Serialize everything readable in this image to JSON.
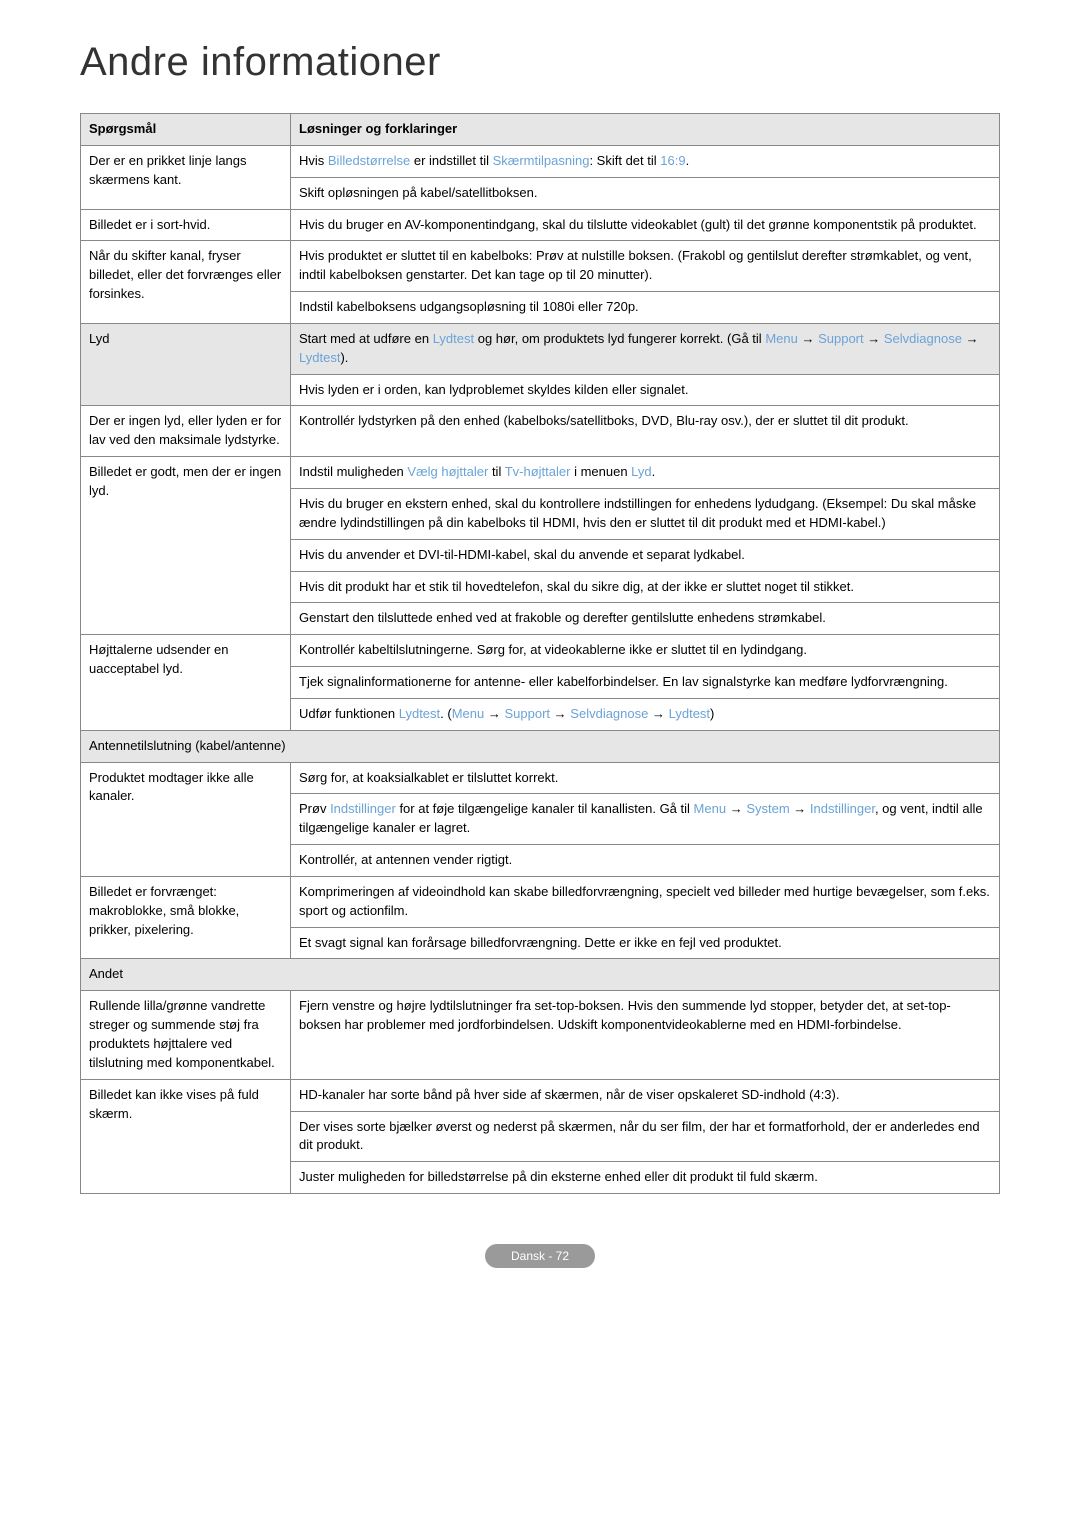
{
  "title": "Andre informationer",
  "headers": {
    "q": "Spørgsmål",
    "a": "Løsninger og forklaringer"
  },
  "rows": [
    {
      "type": "row",
      "q": "Der er en prikket linje langs skærmens kant.",
      "cells": [
        {
          "html": "Hvis <span class='highlight'>Billedstørrelse</span> er indstillet til <span class='highlight'>Skærmtilpasning</span>: Skift det til <span class='highlight'>16:9</span>."
        },
        {
          "html": "Skift opløsningen på kabel/satellitboksen."
        }
      ]
    },
    {
      "type": "row",
      "q": "Billedet er i sort-hvid.",
      "cells": [
        {
          "html": "Hvis du bruger en AV-komponentindgang, skal du tilslutte videokablet (gult) til det grønne komponentstik på produktet."
        }
      ]
    },
    {
      "type": "row",
      "q": "Når du skifter kanal, fryser billedet, eller det forvrænges eller forsinkes.",
      "cells": [
        {
          "html": "Hvis produktet er sluttet til en kabelboks: Prøv at nulstille boksen. (Frakobl og gentilslut derefter strømkablet, og vent, indtil kabelboksen genstarter. Det kan tage op til 20 minutter)."
        },
        {
          "html": "Indstil kabelboksens udgangsopløsning til 1080i eller 720p."
        }
      ]
    },
    {
      "type": "row",
      "q": "Lyd",
      "qbg": true,
      "cells": [
        {
          "bg": true,
          "html": "Start med at udføre en <span class='highlight'>Lydtest</span> og hør, om produktets lyd fungerer korrekt. (Gå til <span class='highlight'>Menu</span> <span class='arrow'>→</span> <span class='highlight'>Support</span> <span class='arrow'>→</span> <span class='highlight'>Selvdiagnose</span> <span class='arrow'>→</span> <span class='highlight'>Lydtest</span>)."
        },
        {
          "html": "Hvis lyden er i orden, kan lydproblemet skyldes kilden eller signalet."
        }
      ]
    },
    {
      "type": "row",
      "q": "Der er ingen lyd, eller lyden er for lav ved den maksimale lydstyrke.",
      "cells": [
        {
          "html": "Kontrollér lydstyrken på den enhed (kabelboks/satellitboks, DVD, Blu-ray osv.), der er sluttet til dit produkt."
        }
      ]
    },
    {
      "type": "row",
      "q": "Billedet er godt, men der er ingen lyd.",
      "cells": [
        {
          "html": "Indstil muligheden <span class='highlight'>Vælg højttaler</span> til <span class='highlight'>Tv-højttaler</span> i menuen <span class='highlight'>Lyd</span>."
        },
        {
          "html": "Hvis du bruger en ekstern enhed, skal du kontrollere indstillingen for enhedens lydudgang. (Eksempel: Du skal måske ændre lydindstillingen på din kabelboks til HDMI, hvis den er sluttet til dit produkt med et HDMI-kabel.)"
        },
        {
          "html": "Hvis du anvender et DVI-til-HDMI-kabel, skal du anvende et separat lydkabel."
        },
        {
          "html": "Hvis dit produkt har et stik til hovedtelefon, skal du sikre dig, at der ikke er sluttet noget til stikket."
        },
        {
          "html": "Genstart den tilsluttede enhed ved at frakoble og derefter gentilslutte enhedens strømkabel."
        }
      ]
    },
    {
      "type": "row",
      "q": "Højttalerne udsender en uacceptabel lyd.",
      "cells": [
        {
          "html": "Kontrollér kabeltilslutningerne. Sørg for, at videokablerne ikke er sluttet til en lydindgang."
        },
        {
          "html": "Tjek signalinformationerne for antenne- eller kabelforbindelser. En lav signalstyrke kan medføre lydforvrængning."
        },
        {
          "html": "Udfør funktionen <span class='highlight'>Lydtest</span>. (<span class='highlight'>Menu</span> <span class='arrow'>→</span> <span class='highlight'>Support</span> <span class='arrow'>→</span> <span class='highlight'>Selvdiagnose</span> <span class='arrow'>→</span> <span class='highlight'>Lydtest</span>)"
        }
      ]
    },
    {
      "type": "section",
      "text": "Antennetilslutning (kabel/antenne)"
    },
    {
      "type": "row",
      "q": "Produktet modtager ikke alle kanaler.",
      "cells": [
        {
          "html": "Sørg for, at koaksialkablet er tilsluttet korrekt."
        },
        {
          "html": "Prøv <span class='highlight'>Indstillinger</span> for at føje tilgængelige kanaler til kanallisten. Gå til <span class='highlight'>Menu</span> <span class='arrow'>→</span> <span class='highlight'>System</span> <span class='arrow'>→</span> <span class='highlight'>Indstillinger</span>, og vent, indtil alle tilgængelige kanaler er lagret."
        },
        {
          "html": "Kontrollér, at antennen vender rigtigt."
        }
      ]
    },
    {
      "type": "row",
      "q": "Billedet er forvrænget: makroblokke, små blokke, prikker, pixelering.",
      "cells": [
        {
          "html": "Komprimeringen af videoindhold kan skabe billedforvrængning, specielt ved billeder med hurtige bevægelser, som f.eks. sport og actionfilm."
        },
        {
          "html": "Et svagt signal kan forårsage billedforvrængning. Dette er ikke en fejl ved produktet."
        }
      ]
    },
    {
      "type": "section",
      "text": "Andet"
    },
    {
      "type": "row",
      "q": "Rullende lilla/grønne vandrette streger og summende støj fra produktets højttalere ved tilslutning med komponentkabel.",
      "cells": [
        {
          "html": "Fjern venstre og højre lydtilslutninger fra set-top-boksen. Hvis den summende lyd stopper, betyder det, at set-top-boksen har problemer med jordforbindelsen. Udskift komponentvideokablerne med en HDMI-forbindelse."
        }
      ]
    },
    {
      "type": "row",
      "q": "Billedet kan ikke vises på fuld skærm.",
      "cells": [
        {
          "html": "HD-kanaler har sorte bånd på hver side af skærmen, når de viser opskaleret SD-indhold (4:3)."
        },
        {
          "html": "Der vises sorte bjælker øverst og nederst på skærmen, når du ser film, der har et formatforhold, der er anderledes end dit produkt."
        },
        {
          "html": "Juster muligheden for billedstørrelse på din eksterne enhed eller dit produkt til fuld skærm."
        }
      ]
    }
  ],
  "footer": "Dansk - 72"
}
